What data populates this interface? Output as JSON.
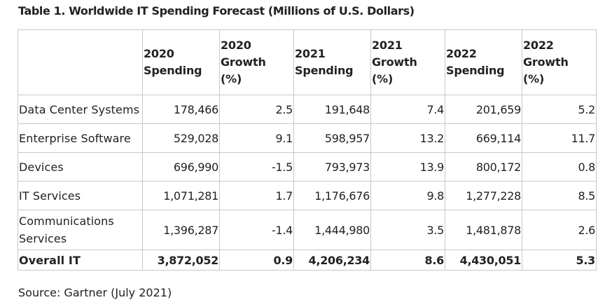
{
  "title": "Table 1. Worldwide IT Spending Forecast (Millions of U.S. Dollars)",
  "columns": [
    {
      "line1": "2020",
      "line2": "Spending",
      "line3": ""
    },
    {
      "line1": "2020",
      "line2": "Growth",
      "line3": "(%)"
    },
    {
      "line1": "2021",
      "line2": "Spending",
      "line3": ""
    },
    {
      "line1": "2021",
      "line2": "Growth",
      "line3": "(%)"
    },
    {
      "line1": "2022",
      "line2": "Spending",
      "line3": ""
    },
    {
      "line1": "2022",
      "line2": "Growth",
      "line3": "(%)"
    }
  ],
  "rows": [
    {
      "label": "Data Center Systems",
      "values": [
        "178,466",
        "2.5",
        "191,648",
        "7.4",
        "201,659",
        "5.2"
      ]
    },
    {
      "label": "Enterprise Software",
      "values": [
        "529,028",
        "9.1",
        "598,957",
        "13.2",
        "669,114",
        "11.7"
      ]
    },
    {
      "label": "Devices",
      "values": [
        "696,990",
        "-1.5",
        "793,973",
        "13.9",
        "800,172",
        "0.8"
      ]
    },
    {
      "label": "IT Services",
      "values": [
        "1,071,281",
        "1.7",
        "1,176,676",
        "9.8",
        "1,277,228",
        "8.5"
      ]
    },
    {
      "label": "Communications Services",
      "values": [
        "1,396,287",
        "-1.4",
        "1,444,980",
        "3.5",
        "1,481,878",
        "2.6"
      ]
    }
  ],
  "total": {
    "label": "Overall IT",
    "values": [
      "3,872,052",
      "0.9",
      "4,206,234",
      "8.6",
      "4,430,051",
      "5.3"
    ]
  },
  "source": "Source: Gartner (July 2021)"
}
